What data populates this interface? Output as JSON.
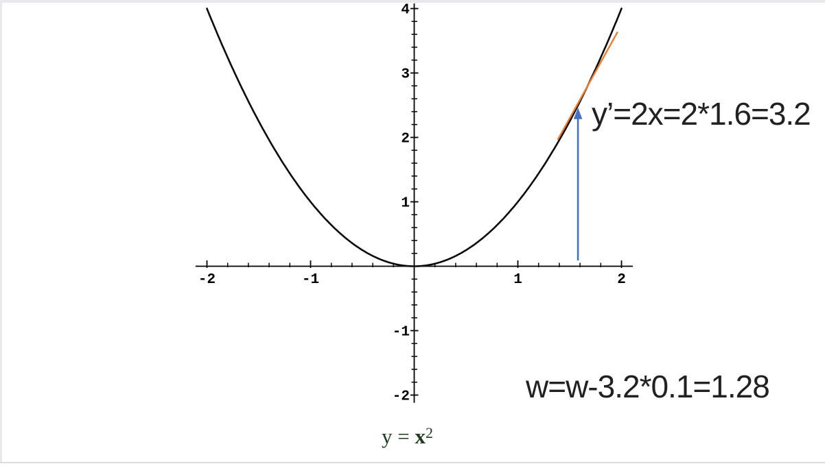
{
  "chart_data": {
    "type": "line",
    "title": "",
    "curve": {
      "label": "y = x^2",
      "expression": "x^2",
      "x_range": [
        -2,
        2
      ],
      "sample_points": [
        [
          -2,
          4
        ],
        [
          -1.5,
          2.25
        ],
        [
          -1,
          1
        ],
        [
          -0.5,
          0.25
        ],
        [
          0,
          0
        ],
        [
          0.5,
          0.25
        ],
        [
          1,
          1
        ],
        [
          1.5,
          2.25
        ],
        [
          1.6,
          2.56
        ],
        [
          2,
          4
        ]
      ],
      "color": "#0b0b0b"
    },
    "axes": {
      "x_ticks": [
        -2,
        -1,
        1,
        2
      ],
      "x_tick_labels": [
        "-2",
        "-1",
        "1",
        "2"
      ],
      "y_ticks": [
        -2,
        -1,
        1,
        2,
        3,
        4
      ],
      "y_tick_labels": [
        "-2",
        "-1",
        "1",
        "2",
        "3",
        "4"
      ],
      "minor_tick_step": 0.2,
      "x_axis_extent": [
        -2.11,
        2.11
      ],
      "y_axis_extent": [
        -2.12,
        4.08
      ],
      "grid": false,
      "color": "#000000"
    },
    "tangent": {
      "x0": 1.6,
      "slope": 3.2,
      "segment_from": [
        1.387,
        1.97
      ],
      "segment_to": [
        1.96,
        3.63
      ],
      "color": "#ED7D31"
    },
    "arrow": {
      "x": 1.58,
      "y_from": 0.09,
      "y_to": 2.46,
      "color": "#4472C4"
    },
    "annotations": {
      "derivative": {
        "text": "y’=2x=2*1.6=3.2",
        "color": "#212121"
      },
      "weight_update": {
        "text": "w=w-3.2*0.1=1.28",
        "color": "#212121"
      }
    },
    "formula_label": {
      "prefix": "y = ",
      "variable": "x",
      "exponent": "2",
      "color": "#1e3d1e"
    }
  }
}
